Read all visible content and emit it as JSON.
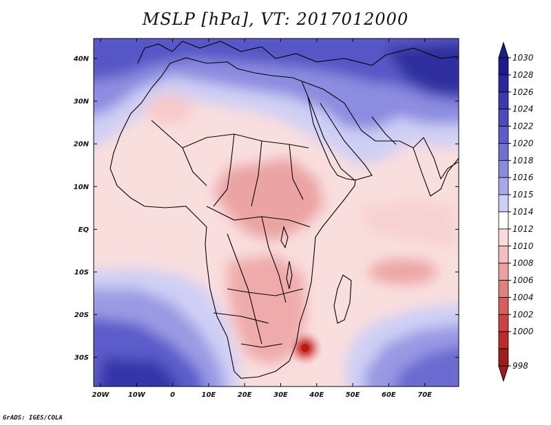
{
  "title": "MSLP [hPa], VT: 2017012000",
  "credit": "GrADS: IGES/COLA",
  "lon_ticks": [
    "20W",
    "10W",
    "0",
    "10E",
    "20E",
    "30E",
    "40E",
    "50E",
    "60E",
    "70E"
  ],
  "lat_ticks": [
    "40N",
    "30N",
    "20N",
    "10N",
    "EQ",
    "10S",
    "20S",
    "30S"
  ],
  "colorbar": {
    "labels": [
      "1030",
      "1028",
      "1026",
      "1024",
      "1022",
      "1020",
      "1018",
      "1016",
      "1015",
      "1014",
      "1012",
      "1010",
      "1008",
      "1006",
      "1004",
      "1002",
      "1000",
      "998"
    ],
    "colors": [
      "#1c1c8e",
      "#2a2aa0",
      "#3a3aae",
      "#4b4bbd",
      "#5c5cca",
      "#7070d4",
      "#8a8adf",
      "#a8a8ea",
      "#cfcff5",
      "#ffffff",
      "#fadada",
      "#f4bebe",
      "#eda0a0",
      "#e27f7f",
      "#d85e5e",
      "#cc4242",
      "#bb2b2b",
      "#9e1d1d"
    ]
  },
  "colors": {
    "ocean_south": "#4d4dc0",
    "ocean_south_deep": "#3535a8",
    "north": "#5252c4",
    "mid_blue": "#8b8be0",
    "light_blue": "#c8c8f3",
    "white": "#ffffff",
    "pink": "#f8d0d0",
    "pink2": "#f2b3b3",
    "red": "#e88a8a",
    "red_low": "#cc3030"
  }
}
